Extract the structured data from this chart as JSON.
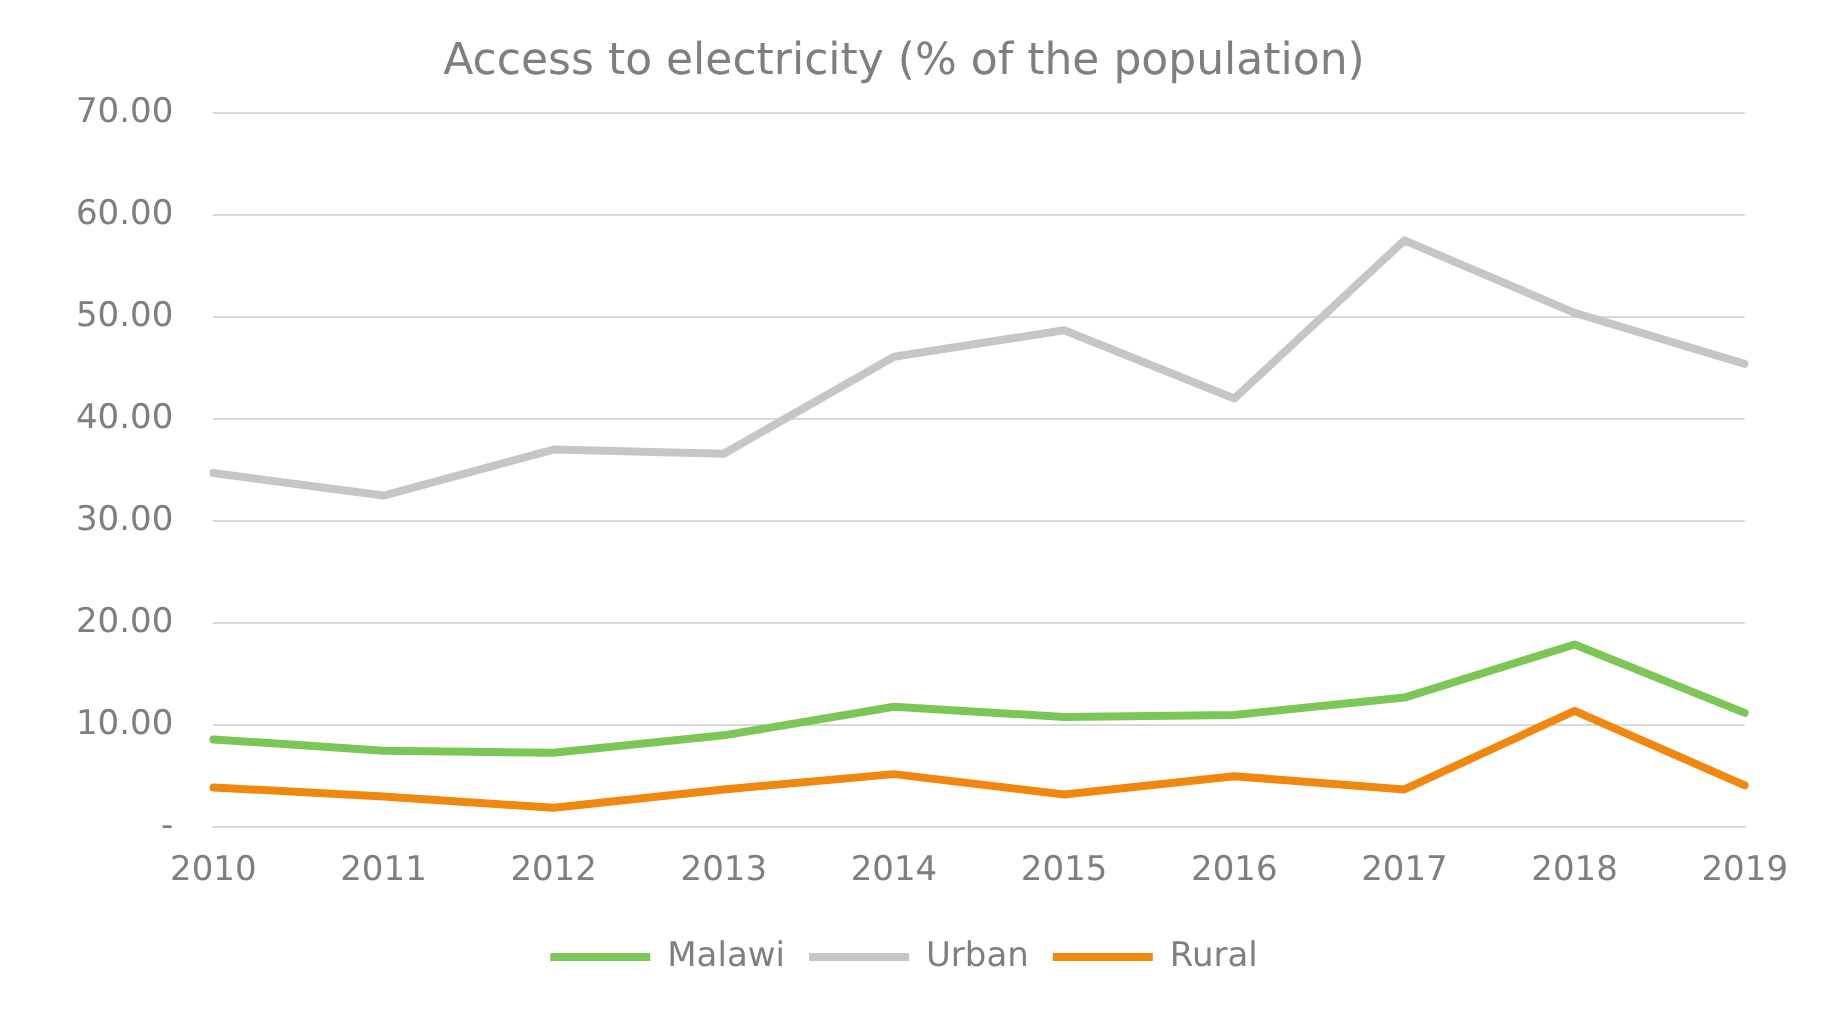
{
  "chart_data": {
    "type": "line",
    "title": "Access to electricity (% of the population)",
    "categories": [
      "2010",
      "2011",
      "2012",
      "2013",
      "2014",
      "2015",
      "2016",
      "2017",
      "2018",
      "2019"
    ],
    "series": [
      {
        "name": "Malawi",
        "color": "#7cc657",
        "values": [
          8.6,
          7.5,
          7.3,
          9.0,
          11.8,
          10.8,
          11.0,
          12.7,
          17.9,
          11.2
        ]
      },
      {
        "name": "Urban",
        "color": "#c6c6c2",
        "values": [
          34.7,
          32.5,
          37.0,
          36.6,
          46.1,
          48.7,
          42.0,
          57.5,
          50.4,
          45.4
        ]
      },
      {
        "name": "Rural",
        "color": "#f0880f",
        "values": [
          3.9,
          3.0,
          1.9,
          3.7,
          5.2,
          3.2,
          5.0,
          3.7,
          11.4,
          4.1
        ]
      }
    ],
    "ylim": [
      0,
      70
    ],
    "yticks": [
      {
        "value": 0,
        "label": "-"
      },
      {
        "value": 10,
        "label": "10.00"
      },
      {
        "value": 20,
        "label": "20.00"
      },
      {
        "value": 30,
        "label": "30.00"
      },
      {
        "value": 40,
        "label": "40.00"
      },
      {
        "value": 50,
        "label": "50.00"
      },
      {
        "value": 60,
        "label": "60.00"
      },
      {
        "value": 70,
        "label": "70.00"
      }
    ],
    "grid": "y",
    "legend": "bottom",
    "marker": "none",
    "line_style": "solid"
  }
}
